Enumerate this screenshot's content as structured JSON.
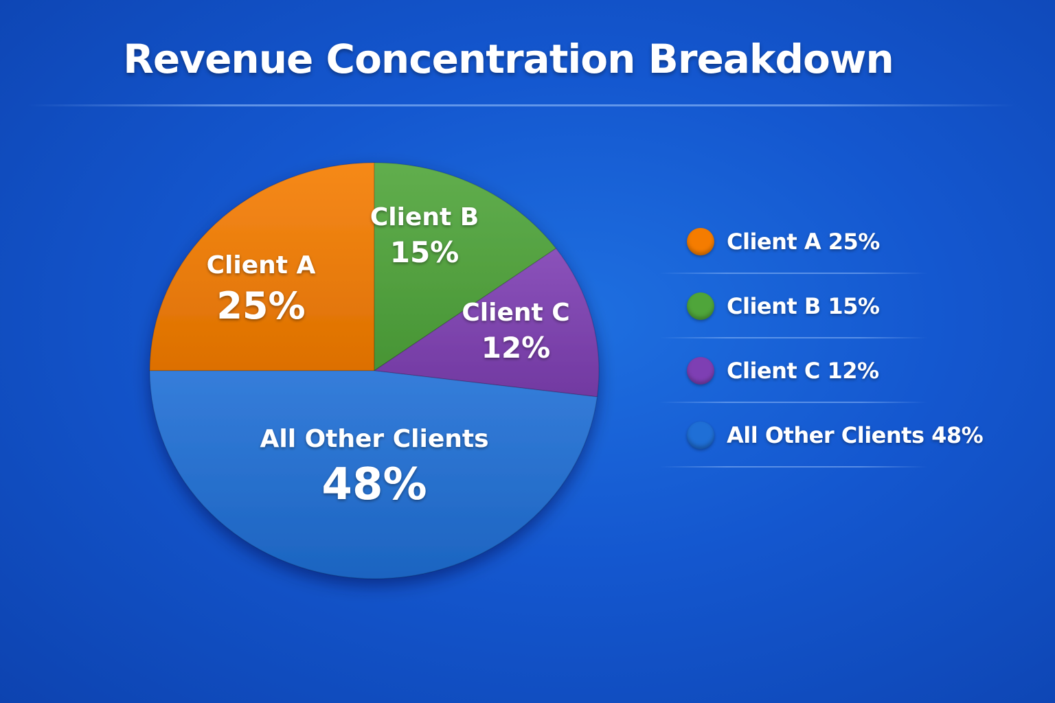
{
  "title": "Revenue Concentration Breakdown",
  "chart_data": {
    "type": "pie",
    "title": "Revenue Concentration Breakdown",
    "slices": [
      {
        "label": "Client A",
        "value": 25,
        "value_label": "25%",
        "color": "#f57c00",
        "legend": "Client A 25%"
      },
      {
        "label": "Client B",
        "value": 15,
        "value_label": "15%",
        "color": "#4fa53a",
        "legend": "Client B 15%"
      },
      {
        "label": "Client C",
        "value": 12,
        "value_label": "12%",
        "color": "#7e3fb3",
        "legend": "Client C 12%"
      },
      {
        "label": "All Other Clients",
        "value": 48,
        "value_label": "48%",
        "color": "#1f6fd6",
        "legend": "All Other Clients 48%"
      }
    ],
    "legend_position": "right"
  }
}
